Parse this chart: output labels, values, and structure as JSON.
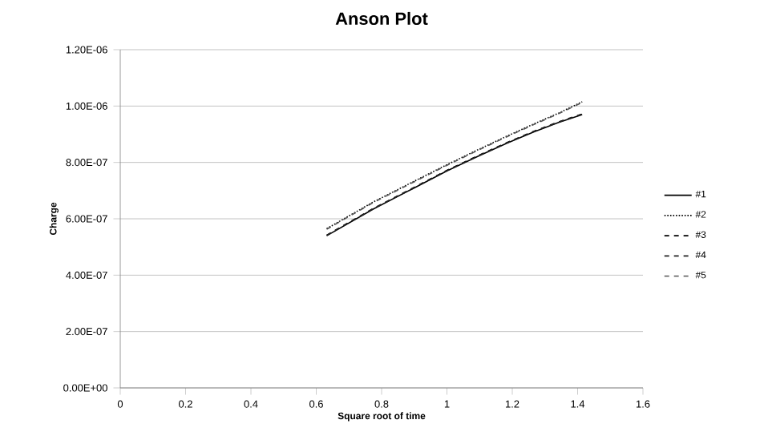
{
  "chart_data": {
    "type": "line",
    "title": "Anson Plot",
    "xlabel": "Square root of time",
    "ylabel": "Charge",
    "x": [
      0.632,
      0.775,
      0.894,
      1.0,
      1.095,
      1.183,
      1.265,
      1.342,
      1.414
    ],
    "series": [
      {
        "name": "#1",
        "color": "#000000",
        "line_style": "solid",
        "values": [
          5.4e-07,
          6.35e-07,
          7.06e-07,
          7.7e-07,
          8.22e-07,
          8.68e-07,
          9.08e-07,
          9.42e-07,
          9.7e-07
        ]
      },
      {
        "name": "#2",
        "color": "#000000",
        "line_style": "dotted",
        "values": [
          5.65e-07,
          6.6e-07,
          7.3e-07,
          7.92e-07,
          8.45e-07,
          8.93e-07,
          9.36e-07,
          9.75e-07,
          1.015e-06
        ]
      },
      {
        "name": "#3",
        "color": "#000000",
        "line_style": "dashed",
        "values": [
          5.42e-07,
          6.37e-07,
          7.08e-07,
          7.72e-07,
          8.24e-07,
          8.7e-07,
          9.1e-07,
          9.44e-07,
          9.72e-07
        ]
      },
      {
        "name": "#4",
        "color": "#222222",
        "line_style": "dashed",
        "values": [
          5.41e-07,
          6.36e-07,
          7.07e-07,
          7.71e-07,
          8.23e-07,
          8.69e-07,
          9.09e-07,
          9.43e-07,
          9.71e-07
        ]
      },
      {
        "name": "#5",
        "color": "#555555",
        "line_style": "dashed",
        "values": [
          5.63e-07,
          6.58e-07,
          7.28e-07,
          7.9e-07,
          8.43e-07,
          8.91e-07,
          9.34e-07,
          9.73e-07,
          1.013e-06
        ]
      }
    ],
    "xlim": [
      0,
      1.6
    ],
    "xticks": [
      0,
      0.2,
      0.4,
      0.6,
      0.8,
      1,
      1.2,
      1.4,
      1.6
    ],
    "ylim": [
      0,
      1.2e-06
    ],
    "yticks": [
      {
        "value": 0,
        "label": "0.00E+00"
      },
      {
        "value": 2e-07,
        "label": "2.00E-07"
      },
      {
        "value": 4e-07,
        "label": "4.00E-07"
      },
      {
        "value": 6e-07,
        "label": "6.00E-07"
      },
      {
        "value": 8e-07,
        "label": "8.00E-07"
      },
      {
        "value": 1e-06,
        "label": "1.00E-06"
      },
      {
        "value": 1.2e-06,
        "label": "1.20E-06"
      }
    ],
    "grid": "y",
    "legend": "right",
    "marker": "none"
  }
}
